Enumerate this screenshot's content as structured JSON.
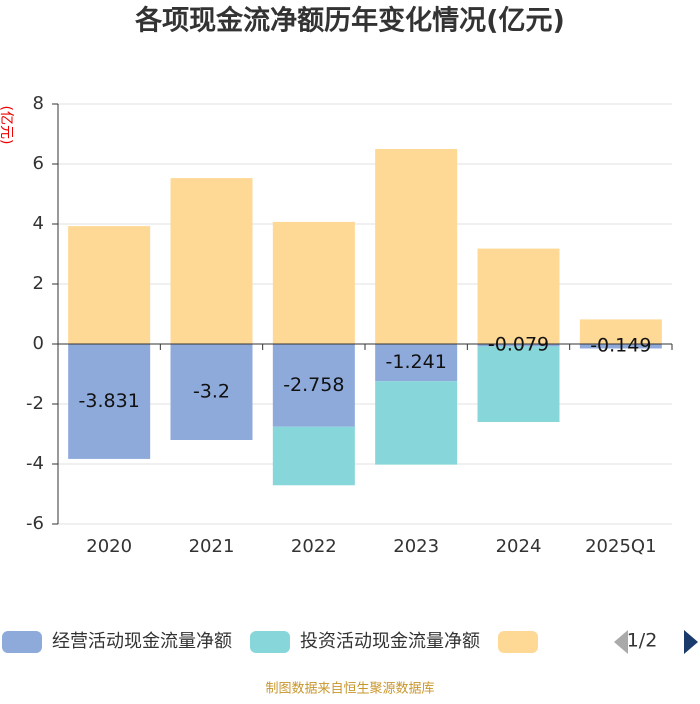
{
  "chart_data": {
    "type": "stacked_bar",
    "title": "各项现金流净额历年变化情况(亿元)",
    "y_label": "(亿元)",
    "categories": [
      "2020",
      "2021",
      "2022",
      "2023",
      "2024",
      "2025Q1"
    ],
    "series": [
      {
        "name": "经营活动现金流量净额",
        "color": "#8eaadb",
        "values": [
          -3.831,
          -3.2,
          -2.758,
          -1.241,
          -0.079,
          -0.149
        ],
        "labels": true
      },
      {
        "name": "投资活动现金流量净额",
        "color": "#87d6d9",
        "values": [
          0,
          0,
          -1.95,
          -2.78,
          -2.52,
          0
        ]
      },
      {
        "color": "#fed895",
        "values": [
          3.93,
          5.53,
          4.07,
          6.5,
          3.18,
          0.82
        ]
      }
    ],
    "ylim": [
      -6,
      8
    ],
    "yticks": [
      -6,
      -4,
      -2,
      0,
      2,
      4,
      6,
      8
    ],
    "grid": true,
    "legend_page": "1/2",
    "source": "制图数据来自恒生聚源数据库"
  }
}
